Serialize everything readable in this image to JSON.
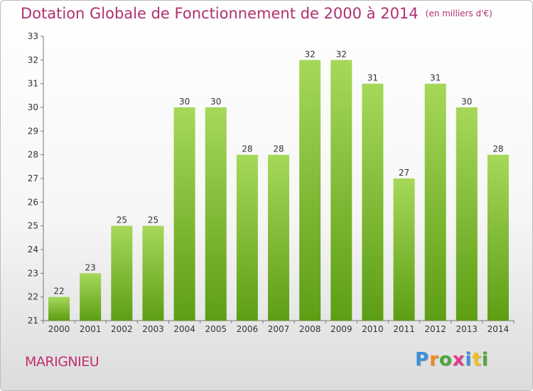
{
  "header": {
    "title": "Dotation Globale de Fonctionnement de 2000 à 2014",
    "subtitle": "(en milliers d'€)"
  },
  "footer": {
    "place": "MARIGNIEU",
    "logo": "Proxiti"
  },
  "colors": {
    "bar_light": "#a6d85a",
    "bar_dark": "#5d9e14",
    "title": "#b0306f"
  },
  "chart_data": {
    "type": "bar",
    "categories": [
      "2000",
      "2001",
      "2002",
      "2003",
      "2004",
      "2005",
      "2006",
      "2007",
      "2008",
      "2009",
      "2010",
      "2011",
      "2012",
      "2013",
      "2014"
    ],
    "values": [
      22,
      23,
      25,
      25,
      30,
      30,
      28,
      28,
      32,
      32,
      31,
      27,
      31,
      30,
      28
    ],
    "ylim": [
      21,
      33
    ],
    "yticks": [
      21,
      22,
      23,
      24,
      25,
      26,
      27,
      28,
      29,
      30,
      31,
      32,
      33
    ],
    "grid": false,
    "data_labels": true
  }
}
